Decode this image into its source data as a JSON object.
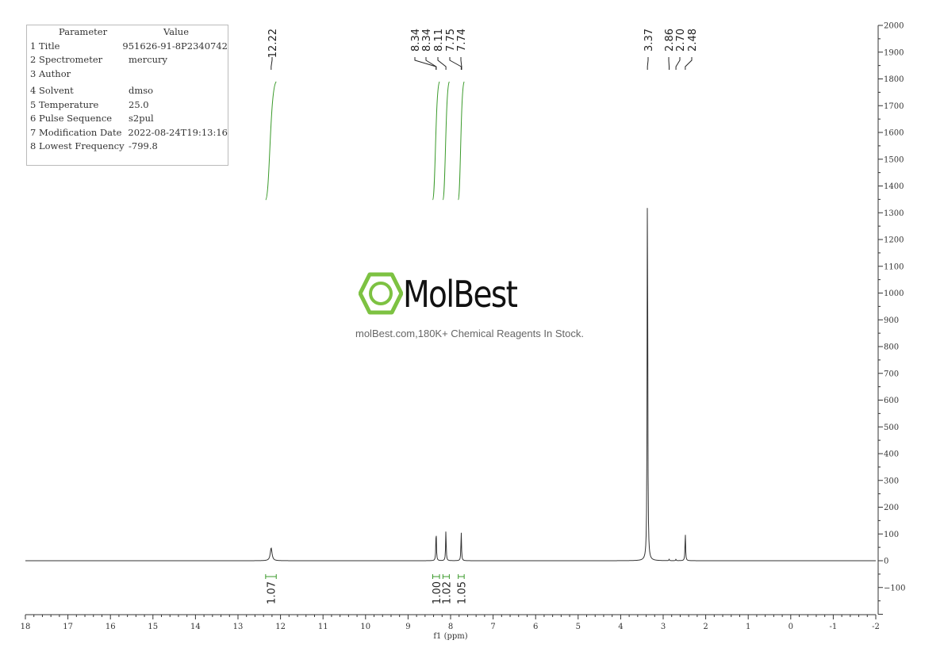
{
  "parameters": {
    "header": [
      "Parameter",
      "Value"
    ],
    "rows": [
      [
        "1 Title",
        "951626-91-8P2340742"
      ],
      [
        "2 Spectrometer",
        "mercury"
      ],
      [
        "3 Author",
        ""
      ],
      [
        "4 Solvent",
        "dmso"
      ],
      [
        "5 Temperature",
        "25.0"
      ],
      [
        "6 Pulse Sequence",
        "s2pul"
      ],
      [
        "7 Modification Date",
        "2022-08-24T19:13:16"
      ],
      [
        "8 Lowest Frequency",
        "-799.8"
      ]
    ]
  },
  "watermark": {
    "name": "MolBest",
    "tagline": "molBest.com,180K+ Chemical Reagents In Stock.",
    "color": "#7dc242"
  },
  "chart_data": {
    "type": "line",
    "xlabel": "f1 (ppm)",
    "xlim": [
      18,
      -2
    ],
    "ylim": [
      -200,
      2000
    ],
    "xticks": [
      18,
      17,
      16,
      15,
      14,
      13,
      12,
      11,
      10,
      9,
      8,
      7,
      6,
      5,
      4,
      3,
      2,
      1,
      0,
      -1,
      -2
    ],
    "yticks": [
      -100,
      0,
      100,
      200,
      300,
      400,
      500,
      600,
      700,
      800,
      900,
      1000,
      1100,
      1200,
      1300,
      1400,
      1500,
      1600,
      1700,
      1800,
      1900,
      2000
    ],
    "peaks": [
      {
        "ppm": 12.22,
        "height": 48
      },
      {
        "ppm": 8.34,
        "height": 118
      },
      {
        "ppm": 8.11,
        "height": 115
      },
      {
        "ppm": 7.75,
        "height": 110
      },
      {
        "ppm": 3.37,
        "height": 1520
      },
      {
        "ppm": 2.86,
        "height": 5
      },
      {
        "ppm": 2.7,
        "height": 5
      },
      {
        "ppm": 2.48,
        "height": 105
      }
    ],
    "peak_labels": [
      "12.22",
      "8.34",
      "8.34",
      "8.11",
      "7.75",
      "7.74",
      "3.37",
      "2.86",
      "2.70",
      "2.48"
    ],
    "integrals": [
      {
        "from": 12.35,
        "to": 12.1,
        "value": "1.07"
      },
      {
        "from": 8.42,
        "to": 8.26,
        "value": "1.00"
      },
      {
        "from": 8.18,
        "to": 8.03,
        "value": "1.02"
      },
      {
        "from": 7.82,
        "to": 7.68,
        "value": "1.05"
      }
    ],
    "colors": {
      "spectrum": "#333333",
      "integral": "#3a9a2a"
    }
  }
}
